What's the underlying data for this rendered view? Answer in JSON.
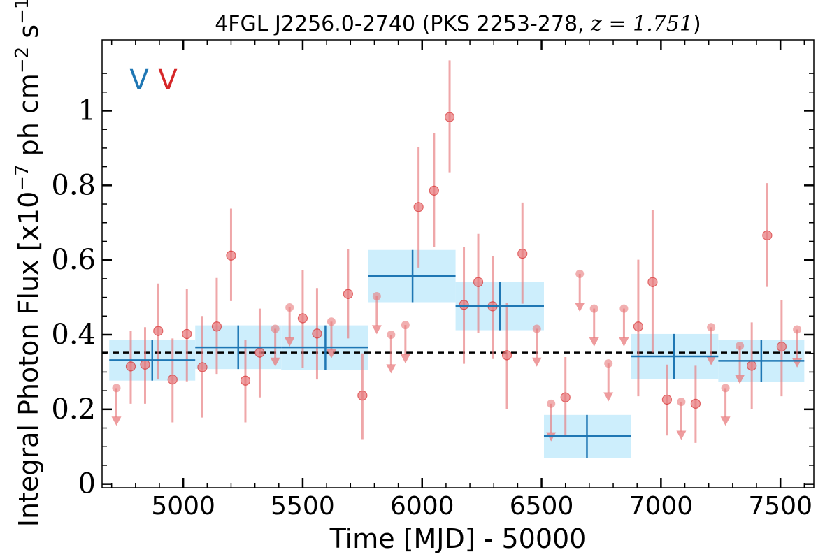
{
  "chart_data": {
    "type": "scatter",
    "title": {
      "prefix": "4FGL J2256.0-2740 (PKS 2253-278, ",
      "math": "z = 1.751",
      "suffix": ")"
    },
    "xlabel": "Time [MJD] - 50000",
    "ylabel": {
      "a": "Integral Photon Flux [x10",
      "a_sup": "−7",
      "b": " ph cm",
      "b_sup": "−2",
      "c": " s",
      "c_sup": "−1",
      "d": "]"
    },
    "xlim": [
      4660,
      7640
    ],
    "ylim": [
      -0.01,
      1.19
    ],
    "xticks": [
      5000,
      5500,
      6000,
      6500,
      7000,
      7500
    ],
    "yticks": [
      0,
      0.2,
      0.4,
      0.6,
      0.8,
      1
    ],
    "ytick_labels": [
      "0",
      "0.2",
      "0.4",
      "0.6",
      "0.8",
      "1"
    ],
    "mean_line": 0.352,
    "variability_flags": [
      {
        "text": "V",
        "color": "#1f77b4"
      },
      {
        "text": "V",
        "color": "#d62728"
      }
    ],
    "colors": {
      "point": "#e8797c",
      "point_edge": "#d62728",
      "bin_line": "#1f77b4",
      "bin_fill": "#cdeefc",
      "mean_line": "#000000"
    },
    "series": [
      {
        "name": "fine",
        "detections": [
          {
            "x": 4780,
            "y": 0.315,
            "lo": 0.215,
            "hi": 0.41
          },
          {
            "x": 4840,
            "y": 0.32,
            "lo": 0.215,
            "hi": 0.42
          },
          {
            "x": 4895,
            "y": 0.41,
            "lo": 0.28,
            "hi": 0.537
          },
          {
            "x": 4955,
            "y": 0.28,
            "lo": 0.165,
            "hi": 0.39
          },
          {
            "x": 5015,
            "y": 0.402,
            "lo": 0.275,
            "hi": 0.522
          },
          {
            "x": 5080,
            "y": 0.313,
            "lo": 0.178,
            "hi": 0.45
          },
          {
            "x": 5140,
            "y": 0.422,
            "lo": 0.295,
            "hi": 0.552
          },
          {
            "x": 5200,
            "y": 0.612,
            "lo": 0.49,
            "hi": 0.738
          },
          {
            "x": 5260,
            "y": 0.277,
            "lo": 0.165,
            "hi": 0.385
          },
          {
            "x": 5320,
            "y": 0.352,
            "lo": 0.232,
            "hi": 0.47
          },
          {
            "x": 5500,
            "y": 0.444,
            "lo": 0.312,
            "hi": 0.573
          },
          {
            "x": 5560,
            "y": 0.403,
            "lo": 0.28,
            "hi": 0.525
          },
          {
            "x": 5690,
            "y": 0.509,
            "lo": 0.39,
            "hi": 0.63
          },
          {
            "x": 5750,
            "y": 0.237,
            "lo": 0.12,
            "hi": 0.35
          },
          {
            "x": 5985,
            "y": 0.742,
            "lo": 0.58,
            "hi": 0.903
          },
          {
            "x": 6050,
            "y": 0.786,
            "lo": 0.635,
            "hi": 0.94
          },
          {
            "x": 6115,
            "y": 0.983,
            "lo": 0.835,
            "hi": 1.135
          },
          {
            "x": 6175,
            "y": 0.48,
            "lo": 0.322,
            "hi": 0.635
          },
          {
            "x": 6235,
            "y": 0.541,
            "lo": 0.405,
            "hi": 0.67
          },
          {
            "x": 6295,
            "y": 0.476,
            "lo": 0.335,
            "hi": 0.61
          },
          {
            "x": 6355,
            "y": 0.345,
            "lo": 0.2,
            "hi": 0.485
          },
          {
            "x": 6420,
            "y": 0.617,
            "lo": 0.483,
            "hi": 0.754
          },
          {
            "x": 6600,
            "y": 0.232,
            "lo": 0.125,
            "hi": 0.34
          },
          {
            "x": 6905,
            "y": 0.422,
            "lo": 0.235,
            "hi": 0.601
          },
          {
            "x": 6965,
            "y": 0.541,
            "lo": 0.352,
            "hi": 0.735
          },
          {
            "x": 7025,
            "y": 0.226,
            "lo": 0.13,
            "hi": 0.32
          },
          {
            "x": 7145,
            "y": 0.215,
            "lo": 0.11,
            "hi": 0.317
          },
          {
            "x": 7380,
            "y": 0.317,
            "lo": 0.2,
            "hi": 0.433
          },
          {
            "x": 7445,
            "y": 0.666,
            "lo": 0.528,
            "hi": 0.806
          },
          {
            "x": 7505,
            "y": 0.368,
            "lo": 0.235,
            "hi": 0.493
          }
        ],
        "upper_limits": [
          {
            "x": 4720,
            "y": 0.257,
            "to": 0.16
          },
          {
            "x": 5385,
            "y": 0.416,
            "to": 0.318
          },
          {
            "x": 5445,
            "y": 0.473,
            "to": 0.372
          },
          {
            "x": 5620,
            "y": 0.435,
            "to": 0.34
          },
          {
            "x": 5810,
            "y": 0.503,
            "to": 0.405
          },
          {
            "x": 5870,
            "y": 0.4,
            "to": 0.3
          },
          {
            "x": 5930,
            "y": 0.426,
            "to": 0.327
          },
          {
            "x": 6480,
            "y": 0.416,
            "to": 0.318
          },
          {
            "x": 6540,
            "y": 0.215,
            "to": 0.118
          },
          {
            "x": 6660,
            "y": 0.563,
            "to": 0.465
          },
          {
            "x": 6720,
            "y": 0.47,
            "to": 0.372
          },
          {
            "x": 6780,
            "y": 0.323,
            "to": 0.225
          },
          {
            "x": 6845,
            "y": 0.47,
            "to": 0.372
          },
          {
            "x": 7085,
            "y": 0.22,
            "to": 0.122
          },
          {
            "x": 7210,
            "y": 0.42,
            "to": 0.322
          },
          {
            "x": 7270,
            "y": 0.257,
            "to": 0.16
          },
          {
            "x": 7330,
            "y": 0.37,
            "to": 0.272
          },
          {
            "x": 7570,
            "y": 0.414,
            "to": 0.316
          }
        ]
      },
      {
        "name": "bayesian blocks",
        "bins": [
          {
            "x0": 4690,
            "x1": 5050,
            "xc": 4870,
            "y": 0.332,
            "lo": 0.277,
            "hi": 0.385
          },
          {
            "x0": 5050,
            "x1": 5410,
            "xc": 5230,
            "y": 0.366,
            "lo": 0.308,
            "hi": 0.425
          },
          {
            "x0": 5410,
            "x1": 5775,
            "xc": 5595,
            "y": 0.366,
            "lo": 0.305,
            "hi": 0.425
          },
          {
            "x0": 5775,
            "x1": 6140,
            "xc": 5960,
            "y": 0.557,
            "lo": 0.487,
            "hi": 0.627
          },
          {
            "x0": 6140,
            "x1": 6510,
            "xc": 6325,
            "y": 0.477,
            "lo": 0.412,
            "hi": 0.542
          },
          {
            "x0": 6510,
            "x1": 6875,
            "xc": 6690,
            "y": 0.128,
            "lo": 0.07,
            "hi": 0.185
          },
          {
            "x0": 6875,
            "x1": 7240,
            "xc": 7055,
            "y": 0.342,
            "lo": 0.282,
            "hi": 0.402
          },
          {
            "x0": 7240,
            "x1": 7600,
            "xc": 7420,
            "y": 0.33,
            "lo": 0.273,
            "hi": 0.385
          }
        ]
      }
    ]
  }
}
